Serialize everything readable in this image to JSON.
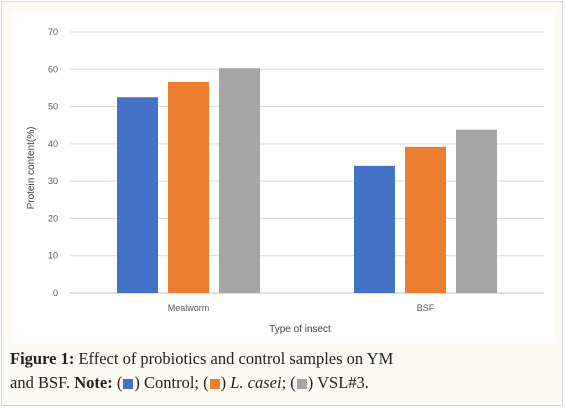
{
  "chart_data": {
    "type": "bar",
    "categories": [
      "Mealworm",
      "BSF"
    ],
    "series": [
      {
        "name": "Control",
        "color": "#4472c4",
        "values": [
          52.5,
          34.1
        ]
      },
      {
        "name": "L. casei",
        "color": "#ed7d31",
        "values": [
          56.6,
          39.2
        ]
      },
      {
        "name": "VSL#3",
        "color": "#a5a5a5",
        "values": [
          60.3,
          43.8
        ]
      }
    ],
    "title": "",
    "xlabel": "Type of insect",
    "ylabel": "Protein content(%)",
    "ylim": [
      0,
      70
    ],
    "yticks": [
      0,
      10,
      20,
      30,
      40,
      50,
      60,
      70
    ],
    "grid": true,
    "legend": "none"
  },
  "caption": {
    "figure_label": "Figure 1:",
    "line1_text": " Effect of probiotics and control samples on YM",
    "line2_text": "and BSF. ",
    "note_label": "Note:",
    "open_paren": " (",
    "control_text": ") Control; (",
    "casei_text": "L. casei",
    "after_casei": "; (",
    "vsl_text": ") VSL#3."
  }
}
